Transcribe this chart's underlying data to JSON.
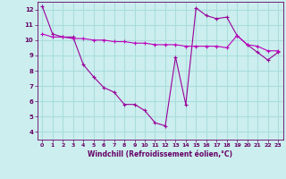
{
  "xlabel": "Windchill (Refroidissement éolien,°C)",
  "x": [
    0,
    1,
    2,
    3,
    4,
    5,
    6,
    7,
    8,
    9,
    10,
    11,
    12,
    13,
    14,
    15,
    16,
    17,
    18,
    19,
    20,
    21,
    22,
    23
  ],
  "line1": [
    12.2,
    10.4,
    10.2,
    10.2,
    8.4,
    7.6,
    6.9,
    6.6,
    5.8,
    5.8,
    5.4,
    4.6,
    4.4,
    8.9,
    5.8,
    12.1,
    11.6,
    11.4,
    11.5,
    10.3,
    9.7,
    9.2,
    8.7,
    9.2
  ],
  "line2": [
    10.4,
    10.2,
    10.2,
    10.1,
    10.1,
    10.0,
    10.0,
    9.9,
    9.9,
    9.8,
    9.8,
    9.7,
    9.7,
    9.7,
    9.6,
    9.6,
    9.6,
    9.6,
    9.5,
    10.3,
    9.7,
    9.6,
    9.3,
    9.3
  ],
  "line_color1": "#990099",
  "line_color2": "#bb00bb",
  "bg_color": "#cceeee",
  "grid_color": "#aadddd",
  "text_color": "#660066",
  "ylim": [
    3.5,
    12.5
  ],
  "xlim": [
    -0.5,
    23.5
  ],
  "yticks": [
    4,
    5,
    6,
    7,
    8,
    9,
    10,
    11,
    12
  ],
  "xticks": [
    0,
    1,
    2,
    3,
    4,
    5,
    6,
    7,
    8,
    9,
    10,
    11,
    12,
    13,
    14,
    15,
    16,
    17,
    18,
    19,
    20,
    21,
    22,
    23
  ]
}
